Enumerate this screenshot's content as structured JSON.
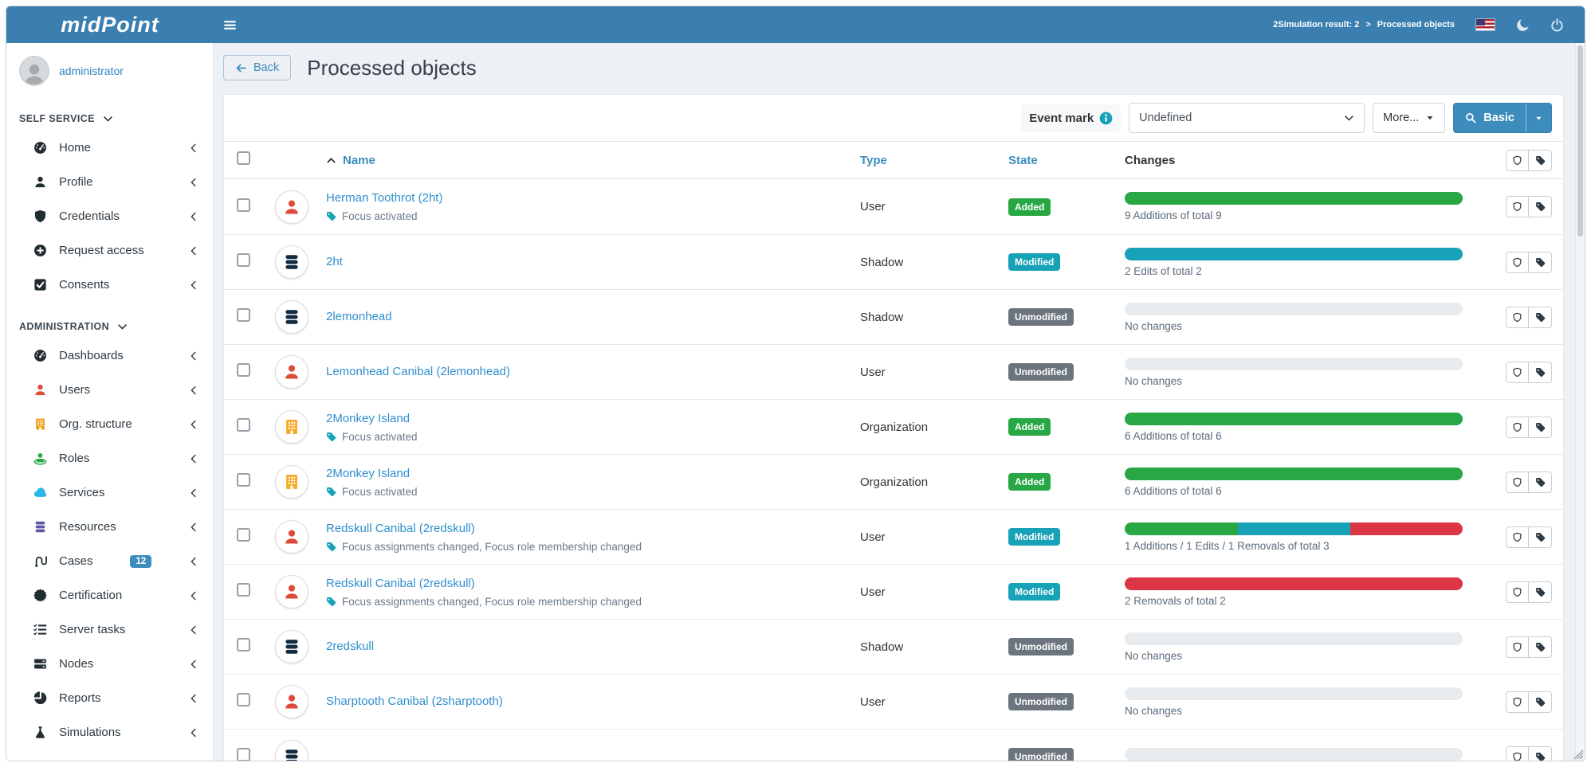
{
  "colors": {
    "accent": "#3c8dbc",
    "added": "#28a745",
    "modified": "#17a2b8",
    "unmodified": "#6c757d",
    "removed": "#dc3545",
    "empty_bar": "#e9ecef"
  },
  "navbar": {
    "logo": "midPoint",
    "breadcrumb": {
      "parent": "2Simulation result: 2",
      "separator": ">",
      "current": "Processed objects"
    }
  },
  "sidebar": {
    "user": "administrator",
    "sections": [
      {
        "label": "SELF SERVICE",
        "items": [
          {
            "label": "Home",
            "icon": "gauge",
            "color": "#222d32",
            "chevron": false
          },
          {
            "label": "Profile",
            "icon": "user",
            "color": "#222d32",
            "chevron": false
          },
          {
            "label": "Credentials",
            "icon": "shield",
            "color": "#222d32",
            "chevron": false
          },
          {
            "label": "Request access",
            "icon": "circle-plus",
            "color": "#222d32",
            "chevron": false
          },
          {
            "label": "Consents",
            "icon": "check-square",
            "color": "#222d32",
            "chevron": false
          }
        ]
      },
      {
        "label": "ADMINISTRATION",
        "items": [
          {
            "label": "Dashboards",
            "icon": "gauge",
            "color": "#222d32",
            "chevron": true
          },
          {
            "label": "Users",
            "icon": "user",
            "color": "#dd4b39",
            "chevron": true
          },
          {
            "label": "Org. structure",
            "icon": "building",
            "color": "#f39c12",
            "chevron": true
          },
          {
            "label": "Roles",
            "icon": "role",
            "color": "#28a745",
            "chevron": true
          },
          {
            "label": "Services",
            "icon": "cloud",
            "color": "#29b8ea",
            "chevron": true
          },
          {
            "label": "Resources",
            "icon": "database",
            "color": "#5c59a6",
            "chevron": true
          },
          {
            "label": "Cases",
            "icon": "cases",
            "color": "#222d32",
            "chevron": false,
            "badge": "12"
          },
          {
            "label": "Certification",
            "icon": "certificate",
            "color": "#222d32",
            "chevron": true
          },
          {
            "label": "Server tasks",
            "icon": "tasks",
            "color": "#222d32",
            "chevron": true
          },
          {
            "label": "Nodes",
            "icon": "server",
            "color": "#222d32",
            "chevron": true
          },
          {
            "label": "Reports",
            "icon": "pie",
            "color": "#222d32",
            "chevron": true
          },
          {
            "label": "Simulations",
            "icon": "flask",
            "color": "#222d32",
            "chevron": true
          }
        ]
      }
    ]
  },
  "page": {
    "back_label": "Back",
    "title": "Processed objects"
  },
  "toolbar": {
    "event_mark_label": "Event mark",
    "event_mark_value": "Undefined",
    "more_label": "More...",
    "search_label": "Basic"
  },
  "table": {
    "headers": {
      "name": "Name",
      "type": "Type",
      "state": "State",
      "changes": "Changes"
    },
    "rows": [
      {
        "icon": "user",
        "icon_color": "#dd4b39",
        "name": "Herman Toothrot (2ht)",
        "subtitle": "Focus activated",
        "type": "User",
        "state": "Added",
        "state_key": "added",
        "segments": [
          {
            "kind": "added",
            "pct": 100
          }
        ],
        "changes": "9 Additions of total 9"
      },
      {
        "icon": "database",
        "icon_color": "#122b40",
        "name": "2ht",
        "subtitle": "",
        "type": "Shadow",
        "state": "Modified",
        "state_key": "modified",
        "segments": [
          {
            "kind": "modified",
            "pct": 100
          }
        ],
        "changes": "2 Edits of total 2"
      },
      {
        "icon": "database",
        "icon_color": "#122b40",
        "name": "2lemonhead",
        "subtitle": "",
        "type": "Shadow",
        "state": "Unmodified",
        "state_key": "unmodified",
        "segments": [],
        "changes": "No changes"
      },
      {
        "icon": "user",
        "icon_color": "#dd4b39",
        "name": "Lemonhead Canibal (2lemonhead)",
        "subtitle": "",
        "type": "User",
        "state": "Unmodified",
        "state_key": "unmodified",
        "segments": [],
        "changes": "No changes"
      },
      {
        "icon": "building",
        "icon_color": "#f6a821",
        "name": "2Monkey Island",
        "subtitle": "Focus activated",
        "type": "Organization",
        "state": "Added",
        "state_key": "added",
        "segments": [
          {
            "kind": "added",
            "pct": 100
          }
        ],
        "changes": "6 Additions of total 6"
      },
      {
        "icon": "building",
        "icon_color": "#f6a821",
        "name": "2Monkey Island",
        "subtitle": "Focus activated",
        "type": "Organization",
        "state": "Added",
        "state_key": "added",
        "segments": [
          {
            "kind": "added",
            "pct": 100
          }
        ],
        "changes": "6 Additions of total 6"
      },
      {
        "icon": "user",
        "icon_color": "#dd4b39",
        "name": "Redskull Canibal (2redskull)",
        "subtitle": "Focus assignments changed, Focus role membership changed",
        "type": "User",
        "state": "Modified",
        "state_key": "modified",
        "segments": [
          {
            "kind": "added",
            "pct": 33.4
          },
          {
            "kind": "modified",
            "pct": 33.3
          },
          {
            "kind": "removed",
            "pct": 33.3
          }
        ],
        "changes": "1 Additions / 1 Edits / 1 Removals of total 3"
      },
      {
        "icon": "user",
        "icon_color": "#dd4b39",
        "name": "Redskull Canibal (2redskull)",
        "subtitle": "Focus assignments changed, Focus role membership changed",
        "type": "User",
        "state": "Modified",
        "state_key": "modified",
        "segments": [
          {
            "kind": "removed",
            "pct": 100
          }
        ],
        "changes": "2 Removals of total 2"
      },
      {
        "icon": "database",
        "icon_color": "#122b40",
        "name": "2redskull",
        "subtitle": "",
        "type": "Shadow",
        "state": "Unmodified",
        "state_key": "unmodified",
        "segments": [],
        "changes": "No changes"
      },
      {
        "icon": "user",
        "icon_color": "#dd4b39",
        "name": "Sharptooth Canibal (2sharptooth)",
        "subtitle": "",
        "type": "User",
        "state": "Unmodified",
        "state_key": "unmodified",
        "segments": [],
        "changes": "No changes"
      },
      {
        "icon": "database",
        "icon_color": "#122b40",
        "name": "",
        "subtitle": "",
        "type": "",
        "state": "Unmodified",
        "state_key": "unmodified",
        "segments": [],
        "changes": ""
      }
    ]
  }
}
